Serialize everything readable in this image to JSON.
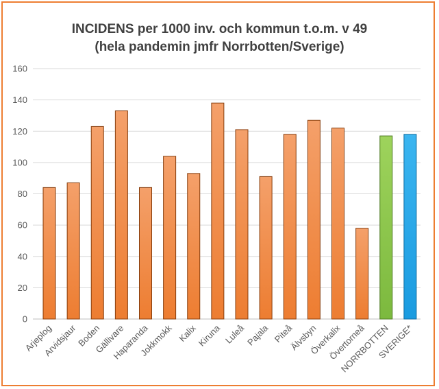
{
  "chart_data": {
    "type": "bar",
    "title": "INCIDENS per 1000 inv. och kommun t.o.m. v 49",
    "subtitle": "(hela pandemin jmfr Norrbotten/Sverige)",
    "xlabel": "",
    "ylabel": "",
    "ylim": [
      0,
      160
    ],
    "yticks": [
      0,
      20,
      40,
      60,
      80,
      100,
      120,
      140,
      160
    ],
    "grid": true,
    "legend": "none",
    "categories": [
      "Arjeplog",
      "Arvidsjaur",
      "Boden",
      "Gällivare",
      "Haparanda",
      "Jokkmokk",
      "Kalix",
      "Kiruna",
      "Luleå",
      "Pajala",
      "Piteå",
      "Älvsbyn",
      "Överkalix",
      "Övertorneå",
      "NORRBOTTEN",
      "SVERIGE*"
    ],
    "values": [
      84,
      87,
      123,
      133,
      84,
      104,
      93,
      138,
      121,
      91,
      118,
      127,
      122,
      58,
      117,
      118
    ],
    "colors": {
      "default": "#ED7D31",
      "NORRBOTTEN": "#8BC34A",
      "SVERIGE*": "#1EA6E8",
      "bar_border": "#843C0C",
      "frame": "#ED7D31"
    }
  }
}
